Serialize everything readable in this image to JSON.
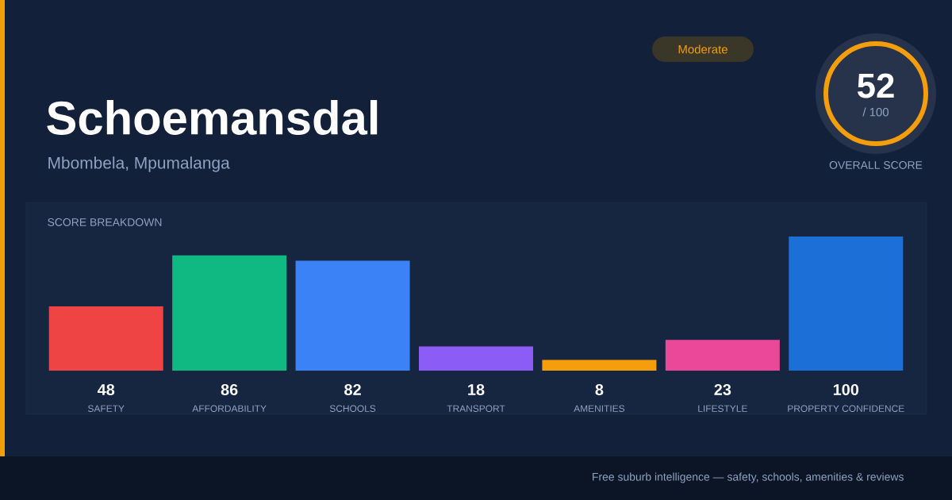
{
  "chart_data": {
    "type": "bar",
    "title": "Schoemansdal",
    "subtitle": "Mbombela, Mpumalanga",
    "categories": [
      "SAFETY",
      "AFFORDABILITY",
      "SCHOOLS",
      "TRANSPORT",
      "AMENITIES",
      "LIFESTYLE",
      "PROPERTY CONFIDENCE"
    ],
    "values": [
      48,
      86,
      82,
      18,
      8,
      23,
      100
    ],
    "colors": [
      "#ef4444",
      "#10b981",
      "#3b82f6",
      "#8b5cf6",
      "#f59e0b",
      "#ec4899",
      "#1d6fd8"
    ],
    "data_labels": true,
    "annotations": [
      "SCORE BREAKDOWN",
      "Moderate",
      "52",
      "/ 100",
      "OVERALL SCORE",
      "Free suburb intelligence — safety, schools, amenities & reviews"
    ]
  }
}
